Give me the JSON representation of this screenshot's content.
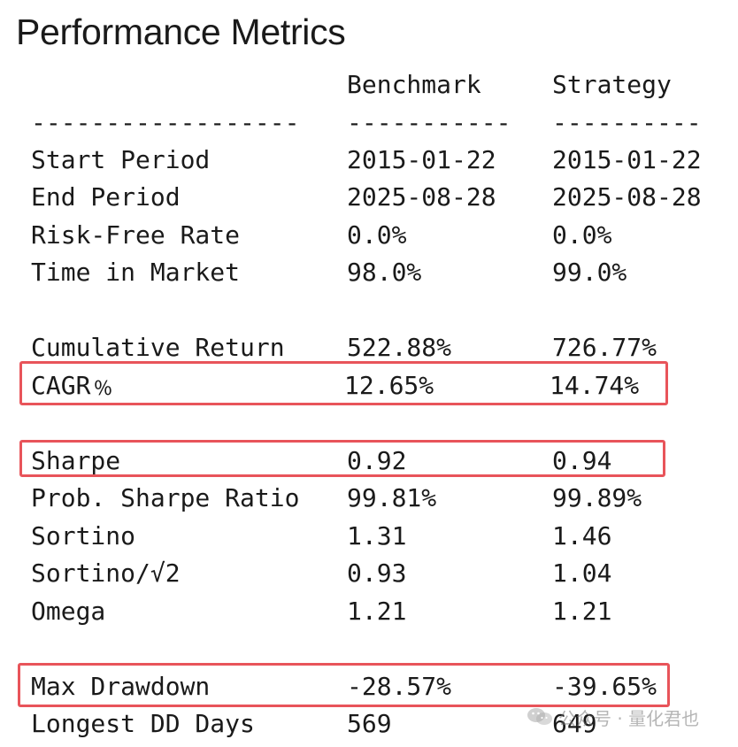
{
  "title": "Performance Metrics",
  "columns": {
    "benchmark": "Benchmark",
    "strategy": "Strategy"
  },
  "separators": {
    "metric": "------------------",
    "benchmark": "-----------",
    "strategy": "----------"
  },
  "rows": [
    {
      "label": "Start Period",
      "benchmark": "2015-01-22",
      "strategy": "2015-01-22"
    },
    {
      "label": "End Period",
      "benchmark": "2025-08-28",
      "strategy": "2025-08-28"
    },
    {
      "label": "Risk-Free Rate",
      "benchmark": "0.0%",
      "strategy": "0.0%"
    },
    {
      "label": "Time in Market",
      "benchmark": "98.0%",
      "strategy": "99.0%"
    },
    {
      "label": "Cumulative Return",
      "benchmark": "522.88%",
      "strategy": "726.77%"
    },
    {
      "label": "CAGR﹪",
      "benchmark": "12.65%",
      "strategy": "14.74%"
    },
    {
      "label": "Sharpe",
      "benchmark": "0.92",
      "strategy": "0.94"
    },
    {
      "label": "Prob. Sharpe Ratio",
      "benchmark": "99.81%",
      "strategy": "99.89%"
    },
    {
      "label": "Sortino",
      "benchmark": "1.31",
      "strategy": "1.46"
    },
    {
      "label": "Sortino/√2",
      "benchmark": "0.93",
      "strategy": "1.04"
    },
    {
      "label": "Omega",
      "benchmark": "1.21",
      "strategy": "1.21"
    },
    {
      "label": "Max Drawdown",
      "benchmark": "-28.57%",
      "strategy": "-39.65%"
    },
    {
      "label": "Longest DD Days",
      "benchmark": "569",
      "strategy": "649"
    }
  ],
  "highlight_color": "#e8545a",
  "watermark": {
    "icon": "wechat-icon",
    "text": "公众号 · 量化君也"
  }
}
